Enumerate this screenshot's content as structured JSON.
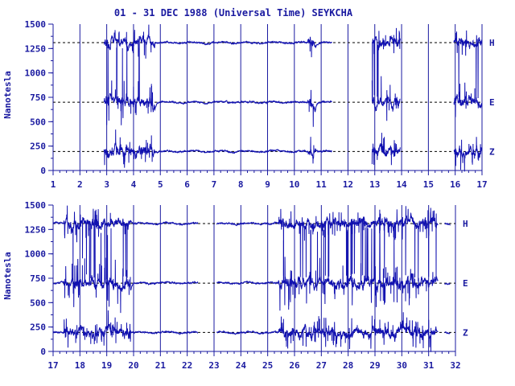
{
  "chart_data": {
    "type": "line",
    "title": "01 - 31 DEC 1988 (Universal Time) SEYKCHA",
    "ylabel": "Nanotesla",
    "colors": {
      "axis": "#1a1aa0",
      "trace": "#1010b0",
      "baseline": "#000000"
    },
    "panels": [
      {
        "name": "top",
        "xlim": [
          1,
          17
        ],
        "x_tick_labels": [
          "1",
          "2",
          "3",
          "4",
          "5",
          "6",
          "7",
          "8",
          "9",
          "10",
          "11",
          "12",
          "13",
          "14",
          "15",
          "16",
          "17"
        ],
        "ylim": [
          0,
          1500
        ],
        "y_tick_labels": [
          "0",
          "250",
          "500",
          "750",
          "1000",
          "1250",
          "1500"
        ],
        "components": [
          {
            "label": "H",
            "baseline": 1310
          },
          {
            "label": "E",
            "baseline": 700
          },
          {
            "label": "Z",
            "baseline": 195
          }
        ],
        "data_segments": [
          [
            2.9,
            11.4
          ],
          [
            12.9,
            13.95
          ],
          [
            15.95,
            17
          ]
        ],
        "disturbed_days": [
          [
            2.9,
            4.8
          ],
          [
            10.5,
            10.8
          ],
          [
            12.9,
            13.95
          ],
          [
            15.95,
            17
          ]
        ]
      },
      {
        "name": "bottom",
        "xlim": [
          17,
          32
        ],
        "x_tick_labels": [
          "17",
          "18",
          "19",
          "20",
          "21",
          "22",
          "23",
          "24",
          "25",
          "26",
          "27",
          "28",
          "29",
          "30",
          "31",
          "32"
        ],
        "ylim": [
          0,
          1500
        ],
        "y_tick_labels": [
          "0",
          "250",
          "500",
          "750",
          "1000",
          "1250",
          "1500"
        ],
        "components": [
          {
            "label": "H",
            "baseline": 1310
          },
          {
            "label": "E",
            "baseline": 700
          },
          {
            "label": "Z",
            "baseline": 195
          }
        ],
        "data_segments": [
          [
            17,
            22.4
          ],
          [
            23.1,
            31.35
          ],
          [
            31.6,
            31.8
          ]
        ],
        "disturbed_days": [
          [
            17.4,
            19.9
          ],
          [
            25.4,
            31.3
          ]
        ]
      }
    ]
  }
}
